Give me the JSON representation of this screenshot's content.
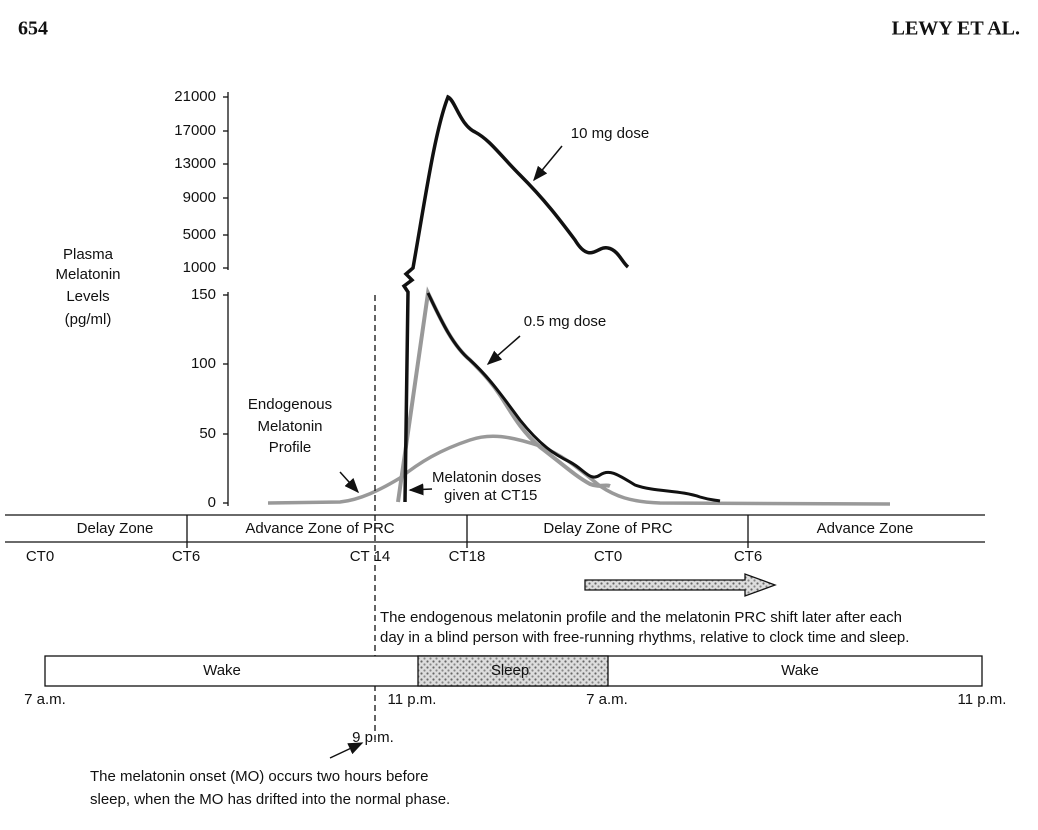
{
  "header": {
    "page": "654",
    "running_head": "LEWY ET AL."
  },
  "figure": {
    "y_axis_label": [
      "Plasma",
      "Melatonin",
      "Levels",
      "(pg/ml)"
    ],
    "upper_ticks": [
      21000,
      17000,
      13000,
      9000,
      5000,
      1000
    ],
    "lower_ticks": [
      150,
      100,
      50,
      0
    ],
    "curve_labels": {
      "high_dose": "10 mg dose",
      "low_dose": "0.5 mg dose"
    },
    "endogenous_label": [
      "Endogenous",
      "Melatonin",
      "Profile"
    ],
    "dose_label": [
      "Melatonin doses",
      "given at CT15"
    ],
    "zones": [
      "Delay Zone",
      "Advance Zone of PRC",
      "Delay Zone of PRC",
      "Advance Zone"
    ],
    "ct_labels": [
      "CT0",
      "CT6",
      "CT 14",
      "CT18",
      "CT0",
      "CT6"
    ],
    "shift_note": [
      "The endogenous melatonin profile and the melatonin PRC shift later after each",
      "day in a blind person with free-running rhythms, relative to clock time and sleep."
    ],
    "sleep_bar": [
      "Wake",
      "Sleep",
      "Wake"
    ],
    "clock_labels": [
      "7 a.m.",
      "11 p.m.",
      "7 a.m.",
      "11 p.m."
    ],
    "onset_time": "9 p.m.",
    "onset_note": [
      "The melatonin onset (MO) occurs two hours before",
      "sleep, when the MO has drifted into the normal phase."
    ]
  }
}
